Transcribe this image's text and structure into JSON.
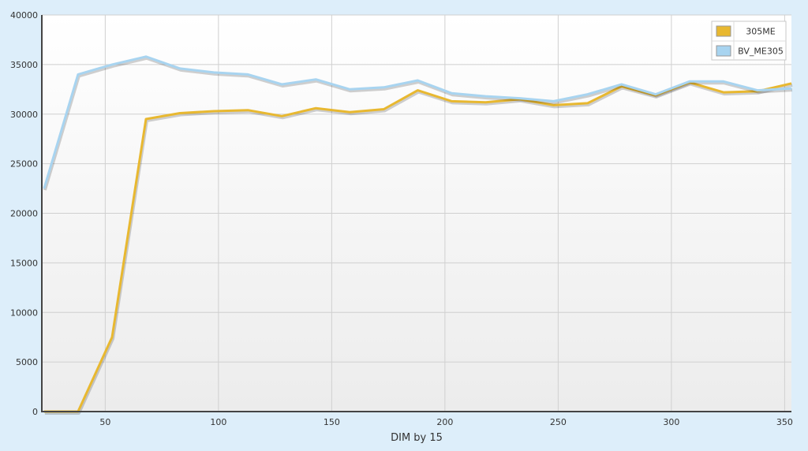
{
  "colors": {
    "page_background": "#ddeefa",
    "plot_background_top": "#ffffff",
    "plot_background_bottom": "#ececec",
    "grid": "#d0d0d0",
    "axis": "#444444"
  },
  "chart_data": {
    "type": "line",
    "title": "",
    "xlabel": "DIM by 15",
    "ylabel": "",
    "xlim": [
      22,
      353
    ],
    "ylim": [
      0,
      40000
    ],
    "grid": true,
    "legend_position": "top-right",
    "x_ticks": [
      "50",
      "100",
      "150",
      "200",
      "250",
      "300",
      "350"
    ],
    "y_ticks": [
      "0",
      "5000",
      "10000",
      "15000",
      "20000",
      "25000",
      "30000",
      "35000",
      "40000"
    ],
    "x": [
      23,
      38,
      53,
      68,
      83,
      98,
      113,
      128,
      143,
      158,
      173,
      188,
      203,
      218,
      233,
      248,
      263,
      278,
      293,
      308,
      323,
      338,
      353
    ],
    "series": [
      {
        "name": "305ME",
        "color": "#e8b830",
        "values": [
          0,
          0,
          7500,
          29500,
          30100,
          30300,
          30400,
          29800,
          30600,
          30200,
          30500,
          32400,
          31300,
          31200,
          31500,
          30900,
          31100,
          32800,
          31900,
          33200,
          32200,
          32300,
          33100
        ]
      },
      {
        "name": "BV_ME305",
        "color": "#a8d4f0",
        "values": [
          22500,
          34000,
          35000,
          35800,
          34600,
          34200,
          34000,
          33000,
          33500,
          32500,
          32700,
          33400,
          32100,
          31800,
          31600,
          31300,
          32000,
          33000,
          32000,
          33300,
          33300,
          32400,
          32600
        ]
      }
    ]
  }
}
